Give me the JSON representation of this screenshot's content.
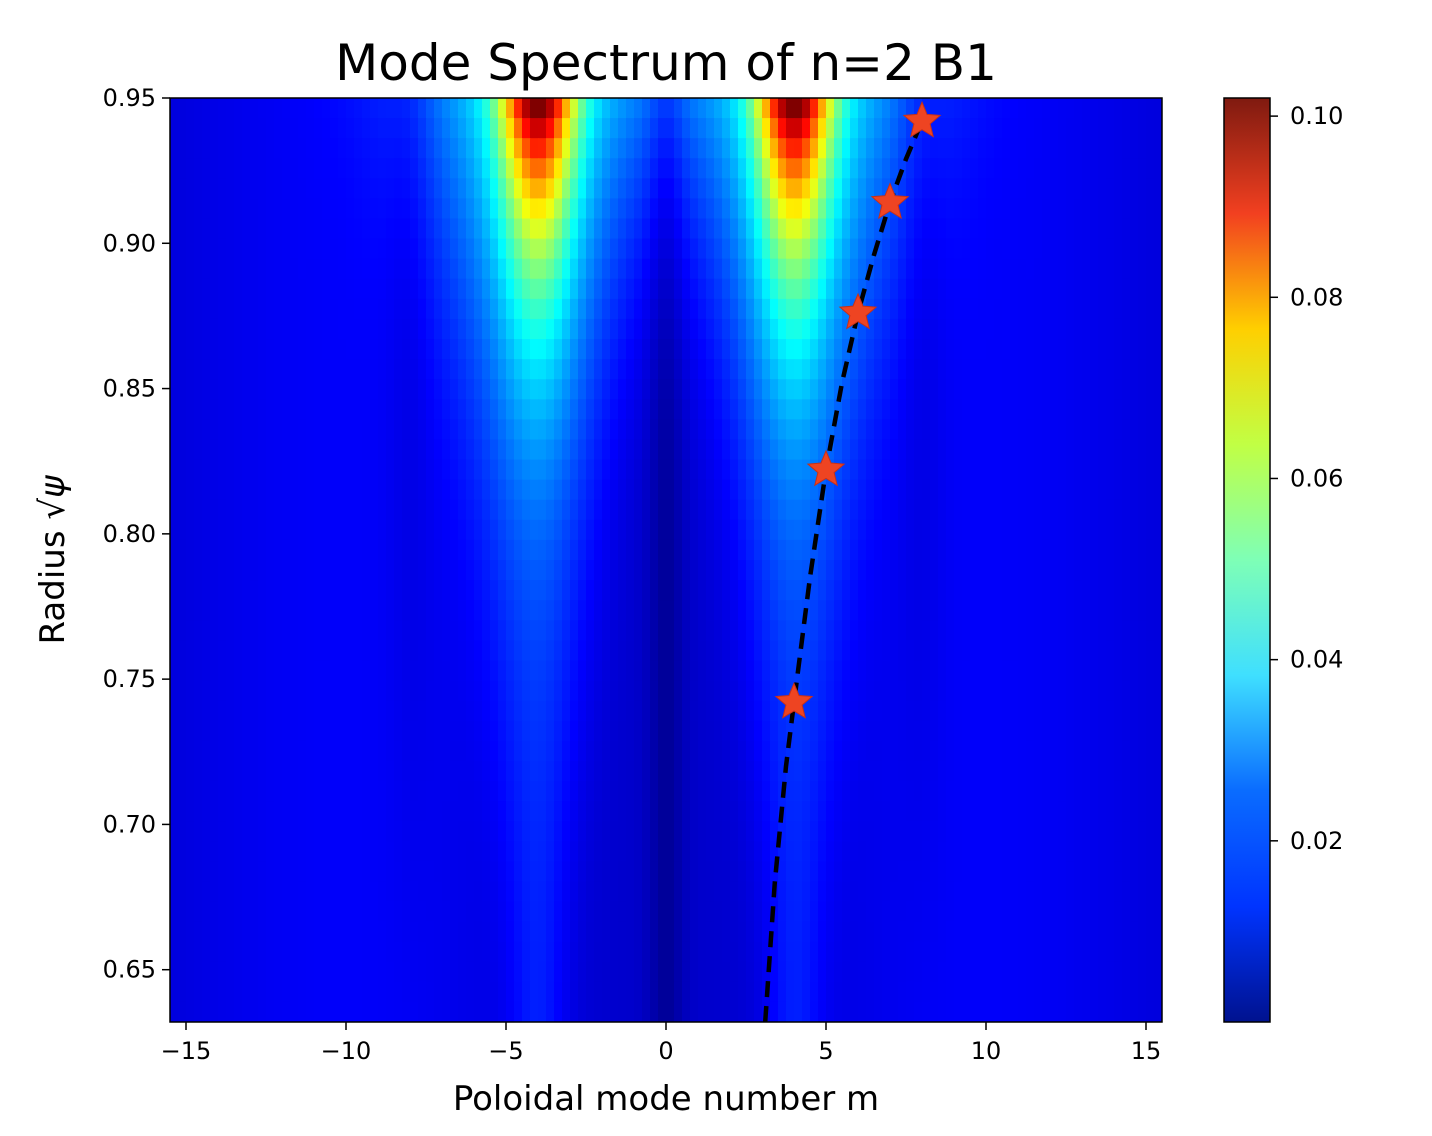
{
  "chart_data": {
    "type": "heatmap",
    "title": "Mode Spectrum of n=2 B1",
    "xlabel": "Poloidal mode number m",
    "ylabel_text": "Radius ",
    "ylabel_math": "√ψ",
    "xlim": [
      -15.5,
      15.5
    ],
    "ylim": [
      0.632,
      0.95
    ],
    "xticks": [
      -15,
      -10,
      -5,
      0,
      5,
      10,
      15
    ],
    "xtick_labels": [
      "−15",
      "−10",
      "−5",
      "0",
      "5",
      "10",
      "15"
    ],
    "yticks": [
      0.65,
      0.7,
      0.75,
      0.8,
      0.85,
      0.9,
      0.95
    ],
    "ytick_labels": [
      "0.65",
      "0.70",
      "0.75",
      "0.80",
      "0.85",
      "0.90",
      "0.95"
    ],
    "colormap": "jet",
    "colorbar_range": [
      0.0,
      0.102
    ],
    "colorbar_ticks": [
      0.02,
      0.04,
      0.06,
      0.08,
      0.1
    ],
    "colorbar_tick_labels": [
      "0.02",
      "0.04",
      "0.06",
      "0.08",
      "0.10"
    ],
    "intensity_peaks": [
      {
        "m": -4,
        "r": 0.95,
        "value": 0.1
      },
      {
        "m": 4,
        "r": 0.95,
        "value": 0.1
      }
    ],
    "resonance_curve": {
      "style": "dashed",
      "color": "#000000",
      "m": [
        3.1,
        3.4,
        3.75,
        4.0,
        4.5,
        5.0,
        5.5,
        6.0,
        6.5,
        7.0,
        7.5,
        8.0
      ],
      "r": [
        0.632,
        0.68,
        0.72,
        0.742,
        0.785,
        0.822,
        0.852,
        0.876,
        0.896,
        0.914,
        0.929,
        0.942
      ]
    },
    "markers": {
      "symbol": "star",
      "color": "#ee4422",
      "points": [
        {
          "m": 4,
          "r": 0.742
        },
        {
          "m": 5,
          "r": 0.822
        },
        {
          "m": 6,
          "r": 0.876
        },
        {
          "m": 7,
          "r": 0.914
        },
        {
          "m": 8,
          "r": 0.942
        }
      ]
    }
  }
}
